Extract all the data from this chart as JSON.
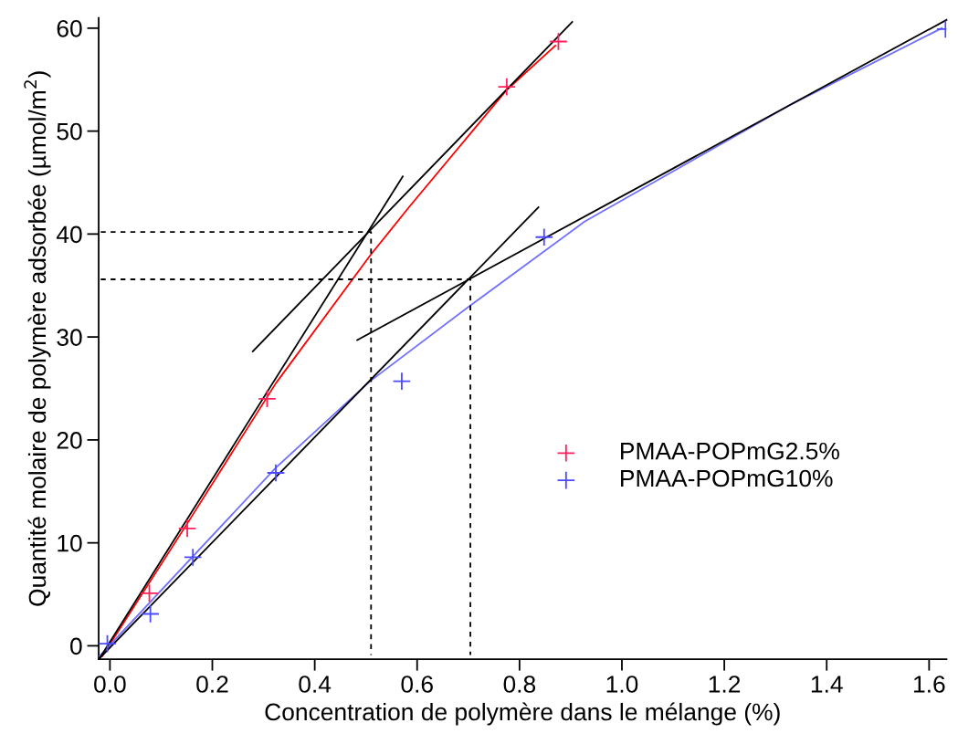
{
  "chart_data": {
    "type": "scatter",
    "xlabel": "Concentration de polymère dans le mélange (%)",
    "ylabel": "Quantité molaire de polymère adsorbée (µmol/m$^{2}$)",
    "xlim": [
      -0.022,
      1.634
    ],
    "ylim": [
      -1.3,
      61
    ],
    "xticks": [
      {
        "value": 0,
        "label": "0.0"
      },
      0.2,
      0.4,
      0.6,
      0.8,
      {
        "value": 1,
        "label": "1.0"
      },
      1.2,
      1.4,
      1.6
    ],
    "yticks": [
      0,
      10,
      20,
      30,
      40,
      50,
      60
    ],
    "grid": false,
    "legend": "right",
    "marker": "cross",
    "series": [
      {
        "name": "PMAA-POPmG2.5%",
        "color": "#ff1f5a",
        "x": [
          0.077,
          0.151,
          0.307,
          0.775,
          0.876
        ],
        "values": [
          5.1,
          11.4,
          24.0,
          54.3,
          58.7
        ]
      },
      {
        "name": "PMAA-POPmG10%",
        "color": "#4a4aff",
        "x": [
          -0.005,
          0.079,
          0.162,
          0.324,
          0.57,
          0.848,
          1.632
        ],
        "values": [
          0.2,
          3.1,
          8.6,
          16.8,
          25.7,
          39.7,
          59.9
        ]
      },
      {
        "type": "line",
        "color": "#ff0000",
        "marker": "none",
        "x": [
          -0.015,
          0.15,
          0.324,
          0.508,
          0.584,
          0.775,
          0.87
        ],
        "values": [
          -1.0,
          11.8,
          25.5,
          37.9,
          42.6,
          54.0,
          58.3
        ]
      },
      {
        "type": "line",
        "color": "#7070ff",
        "marker": "none",
        "x": [
          -0.02,
          0.324,
          0.508,
          0.705,
          0.927,
          1.139,
          1.327,
          1.625
        ],
        "values": [
          -1.0,
          17.3,
          25.7,
          33.1,
          41.2,
          47.2,
          52.5,
          60.0
        ]
      },
      {
        "type": "line",
        "color": "#000000",
        "marker": "none",
        "x": [
          -0.02,
          0.572
        ],
        "values": [
          -1.2,
          45.6
        ]
      },
      {
        "type": "line",
        "color": "#000000",
        "marker": "none",
        "x": [
          0.279,
          0.903
        ],
        "values": [
          28.6,
          60.6
        ]
      },
      {
        "type": "line",
        "color": "#000000",
        "marker": "none",
        "x": [
          -0.02,
          0.837
        ],
        "values": [
          -1.2,
          42.6
        ]
      },
      {
        "type": "line",
        "color": "#000000",
        "marker": "none",
        "x": [
          0.483,
          1.634
        ],
        "values": [
          29.7,
          60.8
        ]
      },
      {
        "type": "line",
        "color": "#000000",
        "marker": "none",
        "line_style": "dashed",
        "x": [
          -0.018,
          0.51,
          0.51
        ],
        "values": [
          40.2,
          40.2,
          -0.9
        ]
      },
      {
        "type": "line",
        "color": "#000000",
        "marker": "none",
        "line_style": "dashed",
        "x": [
          -0.018,
          0.704,
          0.704
        ],
        "values": [
          35.6,
          35.6,
          -0.9
        ]
      }
    ]
  }
}
